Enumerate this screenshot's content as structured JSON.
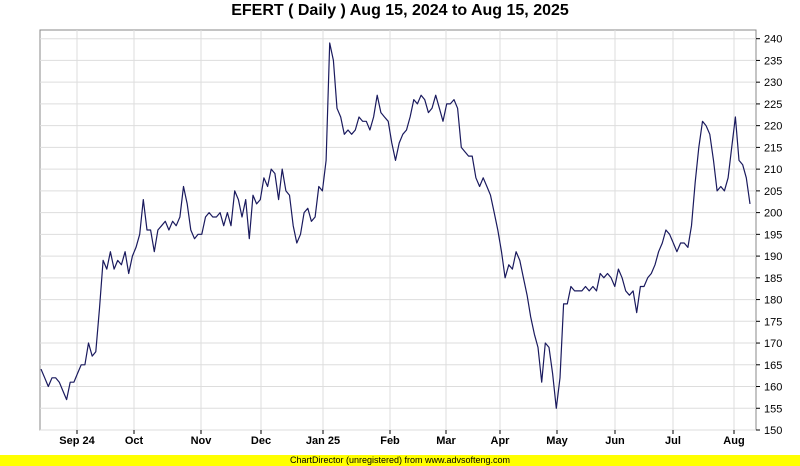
{
  "title": "EFERT ( Daily ) Aug 15, 2024 to Aug 15, 2025",
  "footer": "ChartDirector (unregistered) from www.advsofteng.com",
  "colors": {
    "line": "#1a1a5e",
    "grid": "#dddddd",
    "footer_bg": "#ffff00",
    "frame": "#888888"
  },
  "chart_data": {
    "type": "line",
    "title": "EFERT ( Daily ) Aug 15, 2024 to Aug 15, 2025",
    "xlabel": "",
    "ylabel": "",
    "ylim": [
      150,
      242
    ],
    "y_ticks": [
      150,
      155,
      160,
      165,
      170,
      175,
      180,
      185,
      190,
      195,
      200,
      205,
      210,
      215,
      220,
      225,
      230,
      235,
      240
    ],
    "y_axis_side": "right",
    "x_tick_labels": [
      "Sep 24",
      "Oct",
      "Nov",
      "Dec",
      "Jan 25",
      "Feb",
      "Mar",
      "Apr",
      "May",
      "Jun",
      "Jul",
      "Aug"
    ],
    "grid": true,
    "series": [
      {
        "values": [
          164,
          162,
          160,
          162,
          162,
          161,
          159,
          157,
          161,
          161,
          163,
          165,
          165,
          170,
          167,
          168,
          178,
          189,
          187,
          191,
          187,
          189,
          188,
          191,
          186,
          190,
          192,
          195,
          203,
          196,
          196,
          191,
          196,
          197,
          198,
          196,
          198,
          197,
          199,
          206,
          202,
          196,
          194,
          195,
          195,
          199,
          200,
          199,
          199,
          200,
          197,
          200,
          197,
          205,
          203,
          199,
          203,
          194,
          204,
          202,
          203,
          208,
          206,
          210,
          209,
          203,
          210,
          205,
          204,
          197,
          193,
          195,
          200,
          201,
          198,
          199,
          206,
          205,
          212,
          239,
          235,
          224,
          222,
          218,
          219,
          218,
          219,
          222,
          221,
          221,
          219,
          222,
          227,
          223,
          222,
          221,
          216,
          212,
          216,
          218,
          219,
          222,
          226,
          225,
          227,
          226,
          223,
          224,
          227,
          224,
          221,
          225,
          225,
          226,
          224,
          215,
          214,
          213,
          213,
          208,
          206,
          208,
          206,
          204,
          200,
          196,
          191,
          185,
          188,
          187,
          191,
          189,
          185,
          181,
          176,
          172,
          169,
          161,
          170,
          169,
          163,
          155,
          162,
          179,
          179,
          183,
          182,
          182,
          182,
          183,
          182,
          183,
          182,
          186,
          185,
          186,
          185,
          183,
          187,
          185,
          182,
          181,
          182,
          177,
          183,
          183,
          185,
          186,
          188,
          191,
          193,
          196,
          195,
          193,
          191,
          193,
          193,
          192,
          197,
          207,
          215,
          221,
          220,
          218,
          212,
          205,
          206,
          205,
          208,
          215,
          222,
          212,
          211,
          208,
          202
        ]
      }
    ]
  }
}
